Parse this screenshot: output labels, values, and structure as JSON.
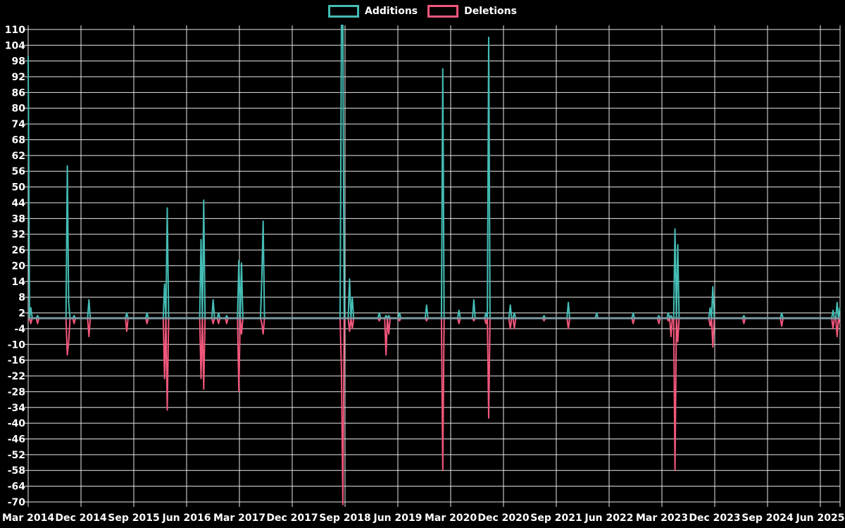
{
  "chart_data": {
    "type": "line",
    "title": "",
    "legend": [
      {
        "name": "Additions",
        "color": "#44bdb5"
      },
      {
        "name": "Deletions",
        "color": "#f2577c"
      }
    ],
    "colors": {
      "additions": "#44bdb5",
      "deletions": "#f2577c",
      "zero_line": "#7f9aa3",
      "grid": "#e8e8e8",
      "text": "#ffffff",
      "background": "#000000"
    },
    "y_axis": {
      "min": -70,
      "max": 110,
      "tick_step": 6
    },
    "x_axis": {
      "start_label": "Mar 2014",
      "months_total": 138.4,
      "label_step_months": 9,
      "labels": [
        "Mar 2014",
        "Dec 2014",
        "Sep 2015",
        "Jun 2016",
        "Mar 2017",
        "Dec 2017",
        "Sep 2018",
        "Jun 2019",
        "Mar 2020",
        "Dec 2020",
        "Sep 2021",
        "Jun 2022",
        "Mar 2023",
        "Dec 2023",
        "Sep 2024",
        "Jun 2025"
      ]
    },
    "grid": true,
    "legend_position": "top-center",
    "note": "events = [months_after_Mar_2014, additions, deletions]; values beyond y-range are clipped at plot edges",
    "events": [
      [
        0.1,
        100,
        -1
      ],
      [
        0.4,
        4,
        -2
      ],
      [
        1.6,
        1,
        -2
      ],
      [
        6.6,
        58,
        -14
      ],
      [
        6.9,
        6,
        -9
      ],
      [
        7.9,
        1,
        -2
      ],
      [
        10.4,
        7,
        -7
      ],
      [
        16.8,
        2,
        -5
      ],
      [
        20.3,
        2,
        -2
      ],
      [
        23.3,
        13,
        -23
      ],
      [
        23.6,
        42,
        -35
      ],
      [
        29.5,
        30,
        -23
      ],
      [
        29.9,
        45,
        -27
      ],
      [
        31.6,
        7,
        -2
      ],
      [
        32.5,
        2,
        -2
      ],
      [
        33.8,
        1,
        -2
      ],
      [
        35.9,
        22,
        -28
      ],
      [
        36.25,
        21,
        -6
      ],
      [
        39.7,
        15,
        -2
      ],
      [
        40.0,
        37,
        -6
      ],
      [
        53.4,
        112,
        -20
      ],
      [
        53.7,
        112,
        -71
      ],
      [
        54.8,
        15,
        -5
      ],
      [
        55.2,
        8,
        -4
      ],
      [
        59.9,
        2,
        -1
      ],
      [
        61.1,
        1,
        -14
      ],
      [
        61.5,
        1,
        -6
      ],
      [
        63.2,
        2,
        -1
      ],
      [
        67.9,
        5,
        -1
      ],
      [
        70.6,
        95,
        -58
      ],
      [
        73.4,
        3,
        -2
      ],
      [
        76.0,
        7,
        -1
      ],
      [
        78.0,
        2,
        -2
      ],
      [
        78.5,
        107,
        -38
      ],
      [
        82.2,
        5,
        -4
      ],
      [
        82.8,
        2,
        -4
      ],
      [
        88.0,
        1,
        -1
      ],
      [
        92.0,
        6,
        -4
      ],
      [
        97.0,
        2,
        0
      ],
      [
        103.1,
        2,
        -2
      ],
      [
        107.4,
        1,
        -2
      ],
      [
        109.2,
        2,
        -1
      ],
      [
        109.6,
        1,
        -7
      ],
      [
        110.2,
        34,
        -58
      ],
      [
        110.6,
        28,
        -9
      ],
      [
        116.2,
        4,
        -3
      ],
      [
        116.6,
        12,
        -11
      ],
      [
        122.0,
        1,
        -2
      ],
      [
        128.4,
        2,
        -3
      ],
      [
        137.2,
        3,
        -4
      ],
      [
        137.8,
        6,
        -7
      ],
      [
        138.3,
        4,
        -2
      ]
    ]
  }
}
